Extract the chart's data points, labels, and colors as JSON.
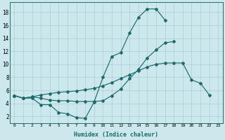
{
  "xlabel": "Humidex (Indice chaleur)",
  "background_color": "#cce8ed",
  "grid_color": "#aacdd4",
  "line_color": "#1e6b6b",
  "xlim": [
    -0.5,
    23.5
  ],
  "ylim": [
    1.0,
    19.5
  ],
  "xticks": [
    0,
    1,
    2,
    3,
    4,
    5,
    6,
    7,
    8,
    9,
    10,
    11,
    12,
    13,
    14,
    15,
    16,
    17,
    18,
    19,
    20,
    21,
    22,
    23
  ],
  "yticks": [
    2,
    4,
    6,
    8,
    10,
    12,
    14,
    16,
    18
  ],
  "line1_x": [
    0,
    1,
    2,
    3,
    4,
    5,
    6,
    7,
    8,
    9,
    10,
    11,
    12,
    13,
    14,
    15,
    16,
    17
  ],
  "line1_y": [
    5.2,
    4.8,
    4.8,
    3.8,
    3.8,
    2.6,
    2.4,
    1.8,
    1.7,
    4.2,
    8.0,
    11.2,
    11.8,
    14.8,
    17.2,
    18.5,
    18.5,
    16.8
  ],
  "line2_x": [
    0,
    1,
    2,
    3,
    4,
    5,
    6,
    7,
    8,
    9,
    10,
    11,
    12,
    13,
    14,
    15,
    16,
    17,
    18
  ],
  "line2_y": [
    5.2,
    4.8,
    5.0,
    4.8,
    4.5,
    4.4,
    4.4,
    4.3,
    4.3,
    4.3,
    4.4,
    5.2,
    6.2,
    7.8,
    9.2,
    11.0,
    12.2,
    13.3,
    13.5
  ],
  "line3_x": [
    0,
    1,
    2,
    3,
    4,
    5,
    6,
    7,
    8,
    9,
    10,
    11,
    12,
    13,
    14,
    15,
    16,
    17,
    18,
    19,
    20,
    21,
    22
  ],
  "line3_y": [
    5.2,
    4.8,
    5.0,
    5.3,
    5.5,
    5.7,
    5.8,
    5.9,
    6.1,
    6.3,
    6.7,
    7.2,
    7.8,
    8.4,
    9.0,
    9.6,
    10.0,
    10.2,
    10.2,
    10.2,
    7.6,
    7.1,
    5.3
  ]
}
